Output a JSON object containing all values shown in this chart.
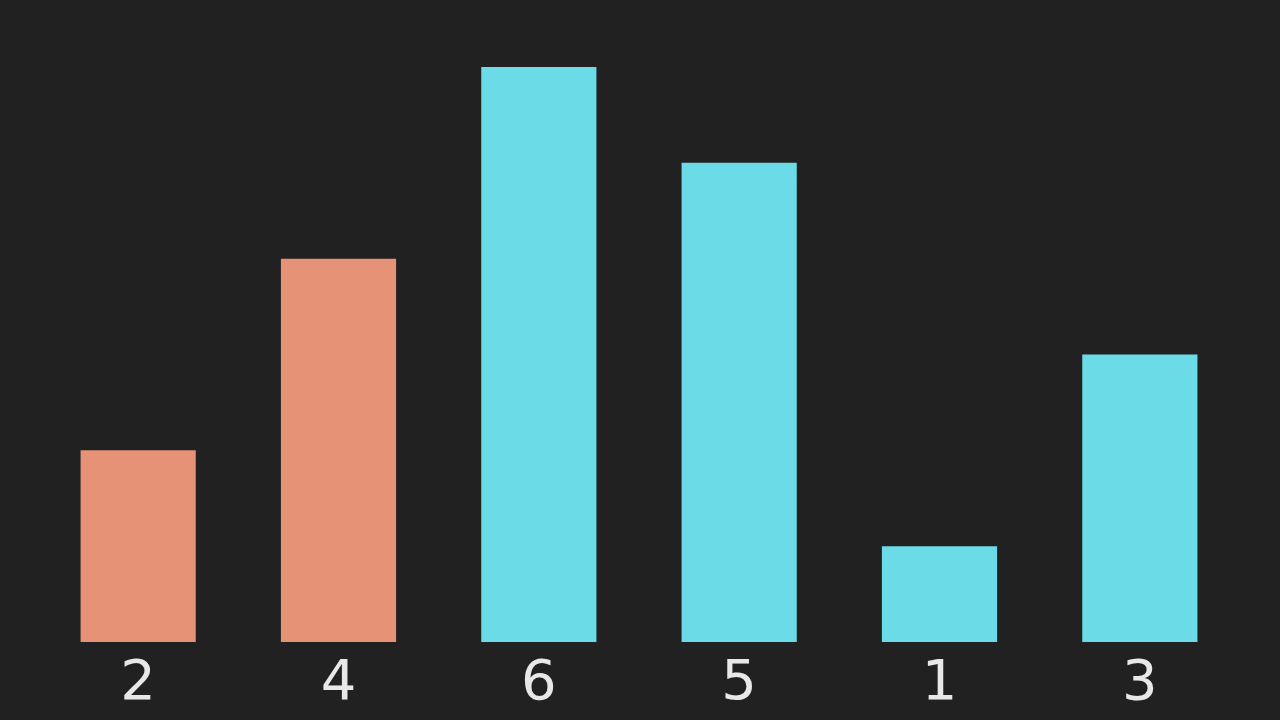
{
  "chart_data": {
    "type": "bar",
    "categories": [
      null,
      null,
      null,
      null,
      null,
      null
    ],
    "values": [
      2,
      4,
      6,
      5,
      1,
      3
    ],
    "colors": [
      "#e59277",
      "#e59277",
      "#6bdbe8",
      "#6bdbe8",
      "#6bdbe8",
      "#6bdbe8"
    ],
    "data_labels": true,
    "legend": false
  }
}
